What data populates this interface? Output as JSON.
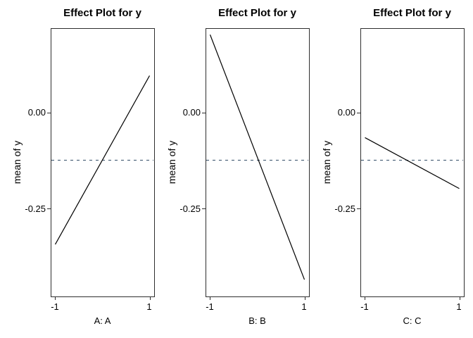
{
  "figure": {
    "kind": "lattice effect plot, 3 panels",
    "background": "#ffffff"
  },
  "chart_data": {
    "type": "line",
    "ylabel": "mean of y",
    "panels": [
      {
        "title": "Effect Plot for y",
        "xlabel": "A: A",
        "x": [
          -1,
          1
        ],
        "y": [
          -0.344,
          0.097
        ]
      },
      {
        "title": "Effect Plot for y",
        "xlabel": "B: B",
        "x": [
          -1,
          1
        ],
        "y": [
          0.204,
          -0.436
        ]
      },
      {
        "title": "Effect Plot for y",
        "xlabel": "C: C",
        "x": [
          -1,
          1
        ],
        "y": [
          -0.065,
          -0.198
        ]
      }
    ],
    "mean_line": -0.123,
    "x_ticks": [
      -1,
      1
    ],
    "x_tick_labels": [
      "-1",
      "1"
    ],
    "y_ticks": [
      0,
      -0.25
    ],
    "y_tick_labels": [
      "0.00",
      "-0.25"
    ],
    "xlim": [
      -1.097,
      1.097
    ],
    "ylim": [
      -0.48,
      0.221
    ],
    "grid": false,
    "legend": "none",
    "colors": {
      "line": "#000000",
      "mean_line": "#334e68",
      "border": "#2e2e2e",
      "tick": "#2e2e2e",
      "text": "#000000"
    }
  }
}
